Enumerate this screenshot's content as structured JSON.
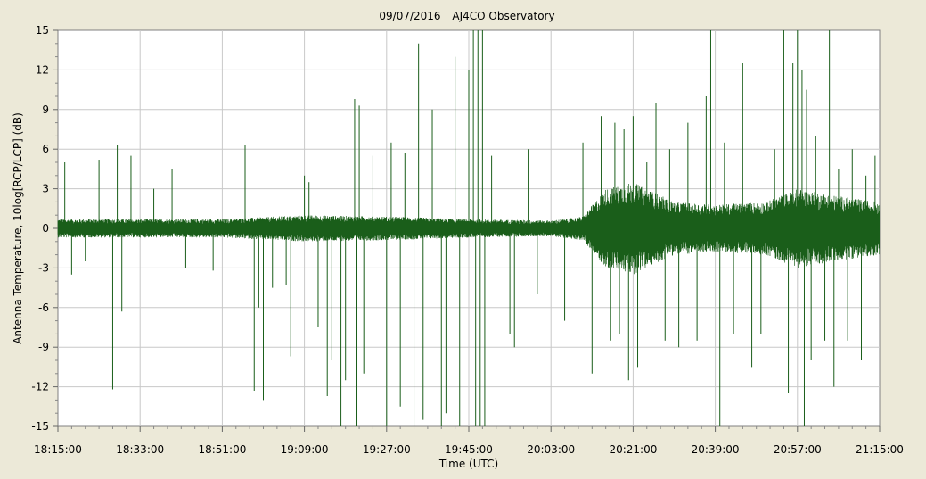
{
  "chart_data": {
    "type": "line",
    "title_date": "09/07/2016",
    "title_name": "AJ4CO Observatory",
    "xlabel": "Time (UTC)",
    "ylabel": "Antenna Temperature, 10log[RCP/LCP] (dB)",
    "x_start": "18:15:00",
    "x_end": "21:15:00",
    "ylim": [
      -15,
      15
    ],
    "y_ticks": [
      15,
      12,
      9,
      6,
      3,
      0,
      -3,
      -6,
      -9,
      -12,
      -15
    ],
    "y_tick_labels": [
      "15",
      "12",
      "9",
      "6",
      "3",
      "0",
      "-3",
      "-6",
      "-9",
      "-12",
      "-15"
    ],
    "x_tick_labels": [
      "18:15:00",
      "18:33:00",
      "18:51:00",
      "19:09:00",
      "19:27:00",
      "19:45:00",
      "20:03:00",
      "20:21:00",
      "20:39:00",
      "20:57:00",
      "21:15:00"
    ],
    "grid": true,
    "series": [
      {
        "color": "#1a5e1a",
        "noise_envelope_db": [
          [
            "18:15:00",
            0.7
          ],
          [
            "18:51:00",
            0.7
          ],
          [
            "19:09:00",
            1.0
          ],
          [
            "19:27:00",
            0.9
          ],
          [
            "19:45:00",
            0.7
          ],
          [
            "20:03:00",
            0.6
          ],
          [
            "20:10:00",
            0.9
          ],
          [
            "20:15:00",
            3.0
          ],
          [
            "20:21:00",
            3.5
          ],
          [
            "20:30:00",
            2.0
          ],
          [
            "20:39:00",
            1.8
          ],
          [
            "20:50:00",
            2.0
          ],
          [
            "20:57:00",
            3.0
          ],
          [
            "21:05:00",
            2.5
          ],
          [
            "21:15:00",
            2.0
          ]
        ],
        "spikes": [
          [
            "18:16:30",
            5.0
          ],
          [
            "18:18:00",
            -3.5
          ],
          [
            "18:21:00",
            -2.5
          ],
          [
            "18:24:00",
            5.2
          ],
          [
            "18:27:00",
            -12.2
          ],
          [
            "18:28:00",
            6.3
          ],
          [
            "18:29:00",
            -6.3
          ],
          [
            "18:31:00",
            5.5
          ],
          [
            "18:36:00",
            3.0
          ],
          [
            "18:40:00",
            4.5
          ],
          [
            "18:43:00",
            -3.0
          ],
          [
            "18:49:00",
            -3.2
          ],
          [
            "18:56:00",
            6.3
          ],
          [
            "18:58:00",
            -12.3
          ],
          [
            "18:59:00",
            -6.0
          ],
          [
            "19:00:00",
            -13.0
          ],
          [
            "19:02:00",
            -4.5
          ],
          [
            "19:05:00",
            -4.3
          ],
          [
            "19:06:00",
            -9.7
          ],
          [
            "19:09:00",
            4.0
          ],
          [
            "19:10:00",
            3.5
          ],
          [
            "19:12:00",
            -7.5
          ],
          [
            "19:14:00",
            -12.7
          ],
          [
            "19:15:00",
            -10.0
          ],
          [
            "19:17:00",
            -15.0
          ],
          [
            "19:18:00",
            -11.5
          ],
          [
            "19:20:00",
            9.8
          ],
          [
            "19:20:30",
            -15.0
          ],
          [
            "19:21:00",
            9.3
          ],
          [
            "19:22:00",
            -11.0
          ],
          [
            "19:24:00",
            5.5
          ],
          [
            "19:27:00",
            -15.0
          ],
          [
            "19:28:00",
            6.5
          ],
          [
            "19:30:00",
            -13.5
          ],
          [
            "19:31:00",
            5.7
          ],
          [
            "19:33:00",
            -15.0
          ],
          [
            "19:34:00",
            14.0
          ],
          [
            "19:35:00",
            -14.5
          ],
          [
            "19:37:00",
            9.0
          ],
          [
            "19:39:00",
            -15.0
          ],
          [
            "19:40:00",
            -14.0
          ],
          [
            "19:42:00",
            13.0
          ],
          [
            "19:43:00",
            -15.0
          ],
          [
            "19:45:00",
            12.0
          ],
          [
            "19:46:00",
            15.0
          ],
          [
            "19:46:30",
            -15.0
          ],
          [
            "19:47:00",
            15.0
          ],
          [
            "19:47:30",
            -15.0
          ],
          [
            "19:48:00",
            15.0
          ],
          [
            "19:48:30",
            -15.0
          ],
          [
            "19:50:00",
            5.5
          ],
          [
            "19:54:00",
            -8.0
          ],
          [
            "19:55:00",
            -9.0
          ],
          [
            "19:58:00",
            6.0
          ],
          [
            "20:00:00",
            -5.0
          ],
          [
            "20:06:00",
            -7.0
          ],
          [
            "20:10:00",
            6.5
          ],
          [
            "20:12:00",
            -11.0
          ],
          [
            "20:14:00",
            8.5
          ],
          [
            "20:16:00",
            -8.5
          ],
          [
            "20:17:00",
            8.0
          ],
          [
            "20:18:00",
            -8.0
          ],
          [
            "20:19:00",
            7.5
          ],
          [
            "20:20:00",
            -11.5
          ],
          [
            "20:21:00",
            8.5
          ],
          [
            "20:22:00",
            -10.5
          ],
          [
            "20:24:00",
            5.0
          ],
          [
            "20:26:00",
            9.5
          ],
          [
            "20:28:00",
            -8.5
          ],
          [
            "20:29:00",
            6.0
          ],
          [
            "20:31:00",
            -9.0
          ],
          [
            "20:33:00",
            8.0
          ],
          [
            "20:35:00",
            -8.5
          ],
          [
            "20:37:00",
            10.0
          ],
          [
            "20:38:00",
            15.0
          ],
          [
            "20:40:00",
            -15.0
          ],
          [
            "20:41:00",
            6.5
          ],
          [
            "20:43:00",
            -8.0
          ],
          [
            "20:45:00",
            12.5
          ],
          [
            "20:47:00",
            -10.5
          ],
          [
            "20:49:00",
            -8.0
          ],
          [
            "20:52:00",
            6.0
          ],
          [
            "20:54:00",
            15.0
          ],
          [
            "20:55:00",
            -12.5
          ],
          [
            "20:56:00",
            12.5
          ],
          [
            "20:57:00",
            15.0
          ],
          [
            "20:58:00",
            12.0
          ],
          [
            "20:58:30",
            -15.0
          ],
          [
            "20:59:00",
            10.5
          ],
          [
            "21:00:00",
            -10.0
          ],
          [
            "21:01:00",
            7.0
          ],
          [
            "21:03:00",
            -8.5
          ],
          [
            "21:04:00",
            15.0
          ],
          [
            "21:05:00",
            -12.0
          ],
          [
            "21:06:00",
            4.5
          ],
          [
            "21:08:00",
            -8.5
          ],
          [
            "21:09:00",
            6.0
          ],
          [
            "21:11:00",
            -10.0
          ],
          [
            "21:12:00",
            4.0
          ],
          [
            "21:14:00",
            5.5
          ]
        ]
      }
    ]
  }
}
